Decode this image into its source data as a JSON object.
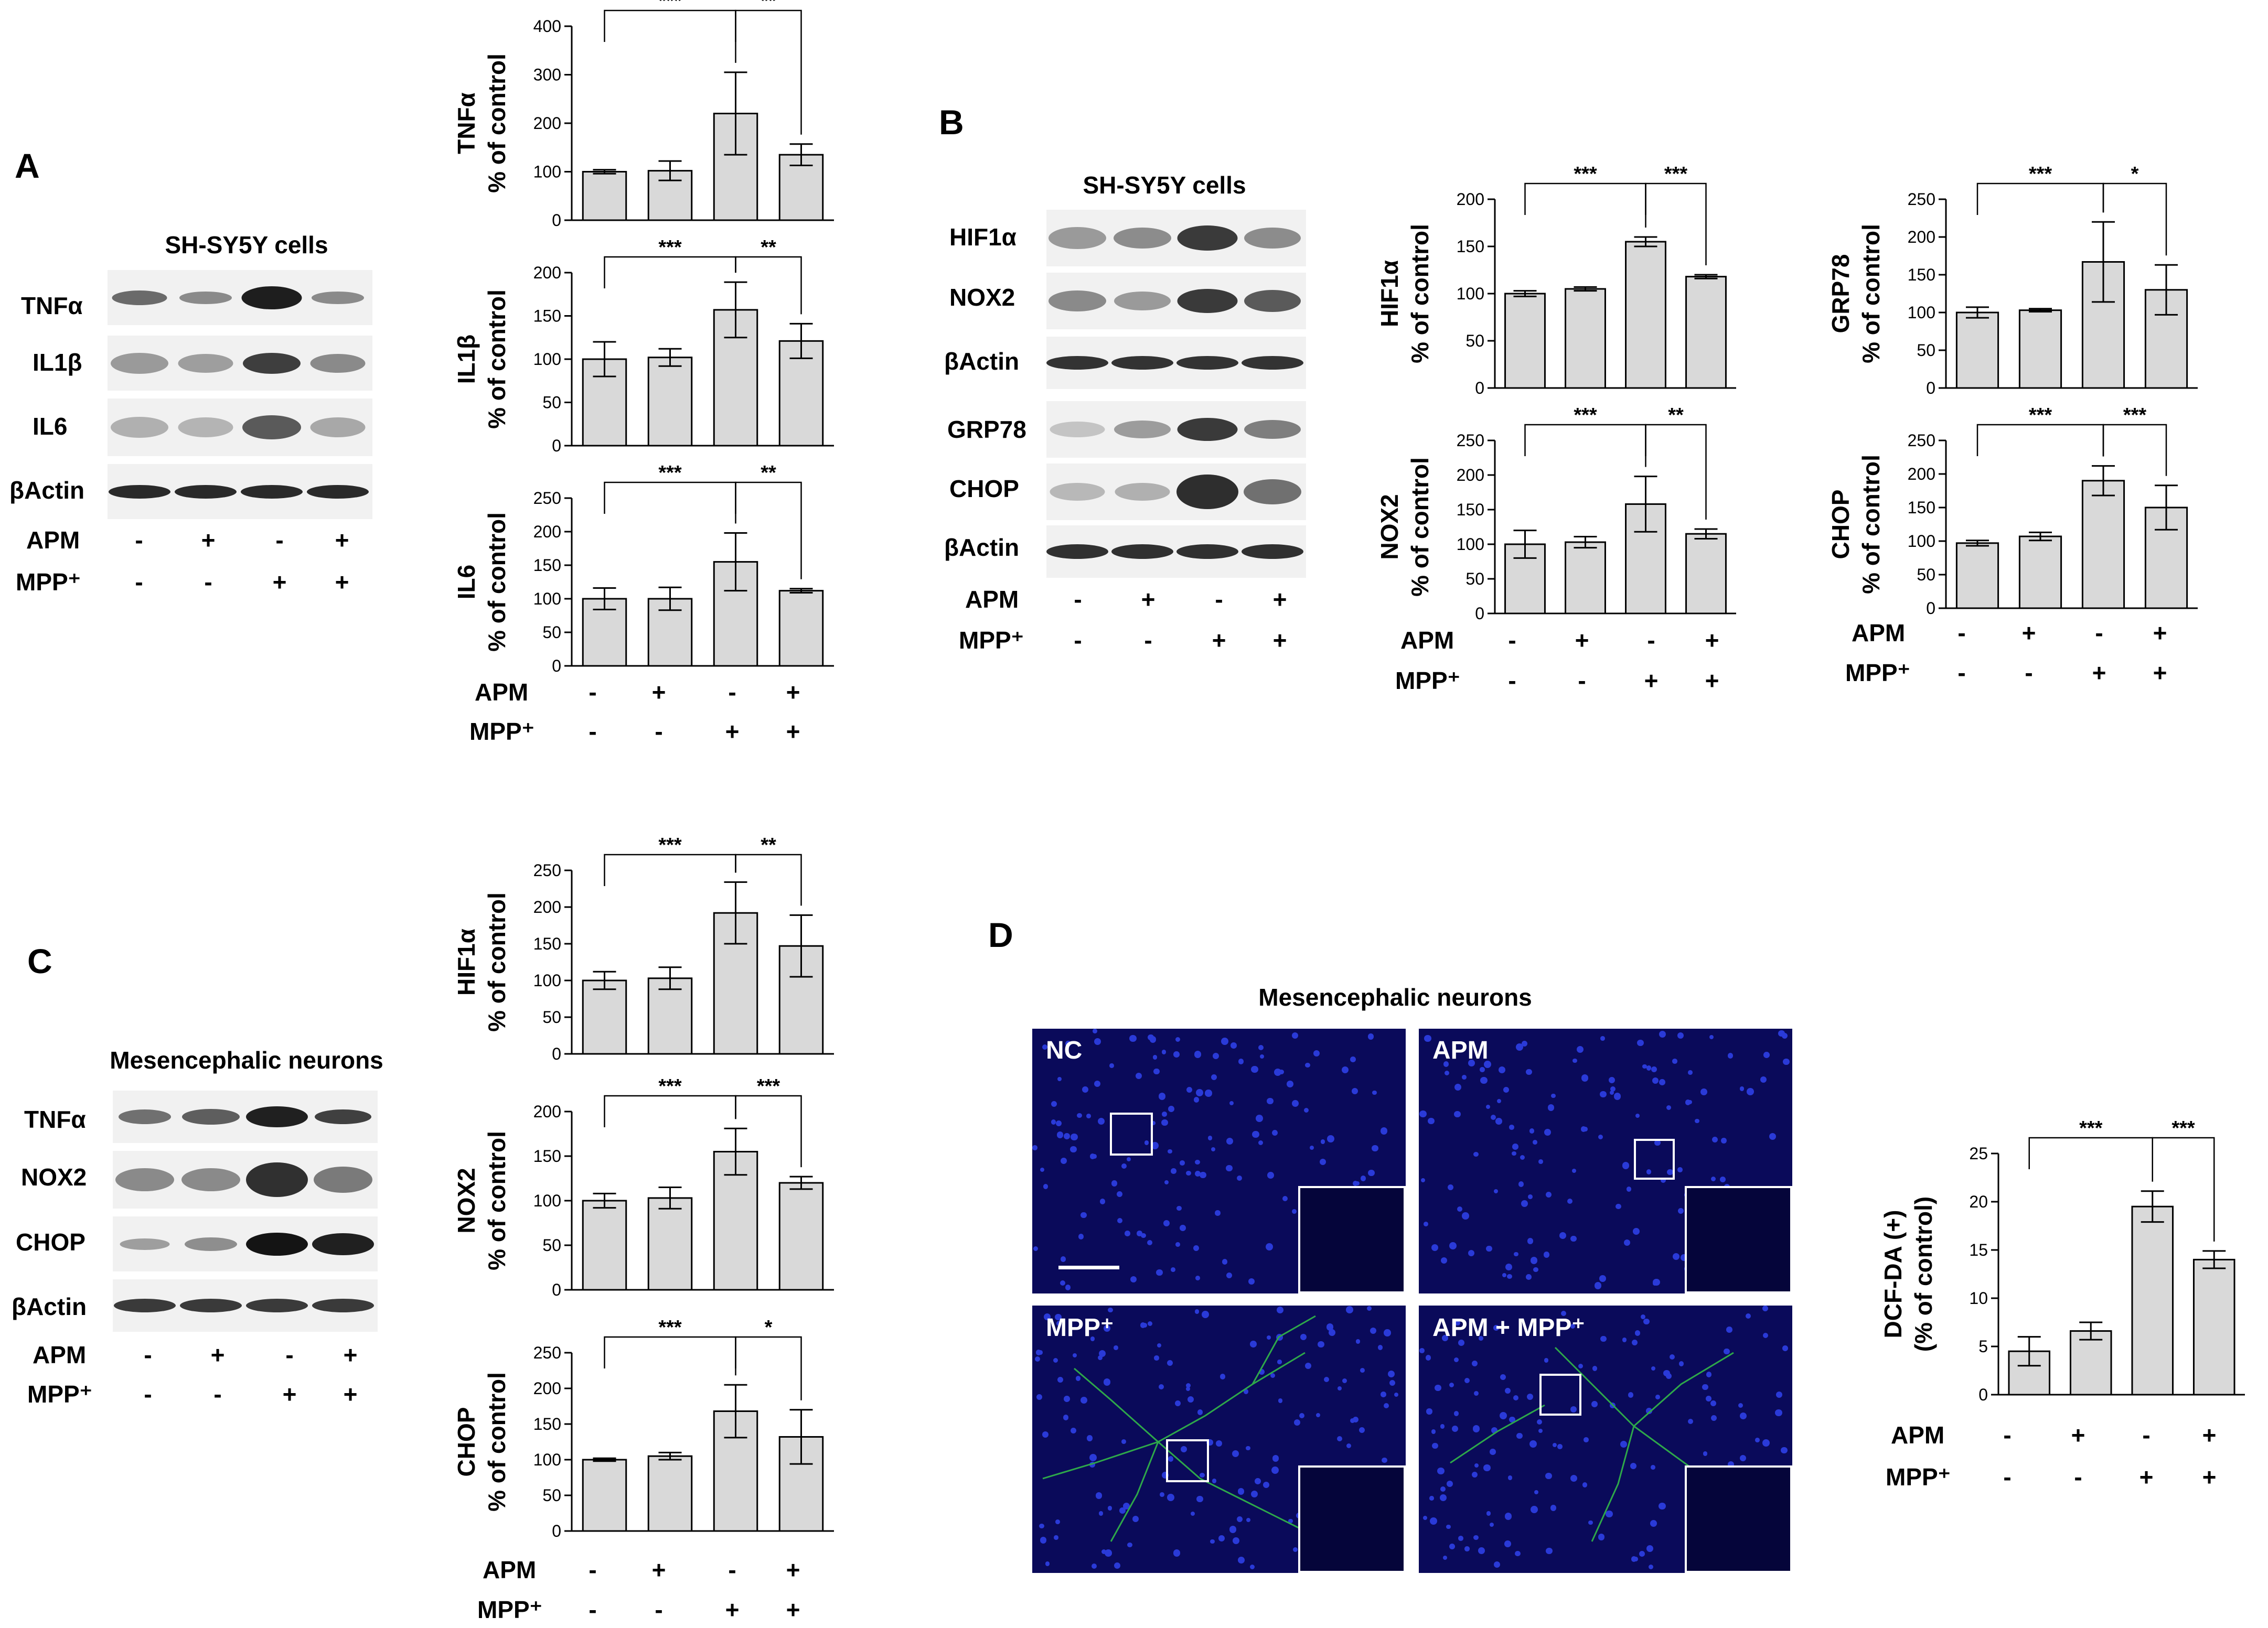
{
  "panels": {
    "A": "A",
    "B": "B",
    "C": "C",
    "D": "D"
  },
  "treatments": {
    "apm_label": "APM",
    "mpp_label": "MPP⁺",
    "apm": [
      "-",
      "+",
      "-",
      "+"
    ],
    "mpp": [
      "-",
      "-",
      "+",
      "+"
    ]
  },
  "blots": {
    "A": {
      "title": "SH-SY5Y cells",
      "rows": [
        "TNFα",
        "IL1β",
        "IL6",
        "βActin"
      ]
    },
    "B": {
      "title": "SH-SY5Y cells",
      "rows": [
        "HIF1α",
        "NOX2",
        "βActin",
        "GRP78",
        "CHOP",
        "βActin"
      ]
    },
    "C": {
      "title": "Mesencephalic neurons",
      "rows": [
        "TNFα",
        "NOX2",
        "CHOP",
        "βActin"
      ]
    }
  },
  "microscopy": {
    "title": "Mesencephalic neurons",
    "images": [
      {
        "label": "NC"
      },
      {
        "label": "APM"
      },
      {
        "label": "MPP⁺"
      },
      {
        "label": "APM + MPP⁺"
      }
    ]
  },
  "chart_data": [
    {
      "id": "A_TNFa",
      "type": "bar",
      "ylabel": [
        "TNFα",
        "% of control"
      ],
      "ylim": [
        0,
        400
      ],
      "yticks": [
        0,
        100,
        200,
        300,
        400
      ],
      "values": [
        100,
        102,
        220,
        135
      ],
      "errors": [
        4,
        20,
        85,
        22
      ],
      "sig": [
        {
          "from": 0,
          "to": 2,
          "label": "***"
        },
        {
          "from": 2,
          "to": 3,
          "label": "**"
        }
      ]
    },
    {
      "id": "A_IL1b",
      "type": "bar",
      "ylabel": [
        "IL1β",
        "% of control"
      ],
      "ylim": [
        0,
        200
      ],
      "yticks": [
        0,
        50,
        100,
        150,
        200
      ],
      "values": [
        100,
        102,
        157,
        121
      ],
      "errors": [
        20,
        10,
        32,
        20
      ],
      "sig": [
        {
          "from": 0,
          "to": 2,
          "label": "***"
        },
        {
          "from": 2,
          "to": 3,
          "label": "**"
        }
      ]
    },
    {
      "id": "A_IL6",
      "type": "bar",
      "ylabel": [
        "IL6",
        "% of control"
      ],
      "ylim": [
        0,
        250
      ],
      "yticks": [
        0,
        50,
        100,
        150,
        200,
        250
      ],
      "values": [
        100,
        100,
        155,
        112
      ],
      "errors": [
        16,
        17,
        43,
        3
      ],
      "sig": [
        {
          "from": 0,
          "to": 2,
          "label": "***"
        },
        {
          "from": 2,
          "to": 3,
          "label": "**"
        }
      ]
    },
    {
      "id": "B_HIF1a",
      "type": "bar",
      "ylabel": [
        "HIF1α",
        "% of control"
      ],
      "ylim": [
        0,
        200
      ],
      "yticks": [
        0,
        50,
        100,
        150,
        200
      ],
      "values": [
        100,
        105,
        155,
        118
      ],
      "errors": [
        3,
        2,
        5,
        2
      ],
      "sig": [
        {
          "from": 0,
          "to": 2,
          "label": "***"
        },
        {
          "from": 2,
          "to": 3,
          "label": "***"
        }
      ]
    },
    {
      "id": "B_NOX2",
      "type": "bar",
      "ylabel": [
        "NOX2",
        "% of control"
      ],
      "ylim": [
        0,
        250
      ],
      "yticks": [
        0,
        50,
        100,
        150,
        200,
        250
      ],
      "values": [
        100,
        103,
        158,
        115
      ],
      "errors": [
        20,
        8,
        40,
        7
      ],
      "sig": [
        {
          "from": 0,
          "to": 2,
          "label": "***"
        },
        {
          "from": 2,
          "to": 3,
          "label": "**"
        }
      ]
    },
    {
      "id": "B_GRP78",
      "type": "bar",
      "ylabel": [
        "GRP78",
        "% of control"
      ],
      "ylim": [
        0,
        250
      ],
      "yticks": [
        0,
        50,
        100,
        150,
        200,
        250
      ],
      "values": [
        100,
        103,
        167,
        130
      ],
      "errors": [
        7,
        2,
        53,
        33
      ],
      "sig": [
        {
          "from": 0,
          "to": 2,
          "label": "***"
        },
        {
          "from": 2,
          "to": 3,
          "label": "*"
        }
      ]
    },
    {
      "id": "B_CHOP",
      "type": "bar",
      "ylabel": [
        "CHOP",
        "% of control"
      ],
      "ylim": [
        0,
        250
      ],
      "yticks": [
        0,
        50,
        100,
        150,
        200,
        250
      ],
      "values": [
        97,
        107,
        190,
        150
      ],
      "errors": [
        4,
        6,
        22,
        33
      ],
      "sig": [
        {
          "from": 0,
          "to": 2,
          "label": "***"
        },
        {
          "from": 2,
          "to": 3,
          "label": "***"
        }
      ]
    },
    {
      "id": "C_HIF1a",
      "type": "bar",
      "ylabel": [
        "HIF1α",
        "% of control"
      ],
      "ylim": [
        0,
        250
      ],
      "yticks": [
        0,
        50,
        100,
        150,
        200,
        250
      ],
      "values": [
        100,
        103,
        192,
        147
      ],
      "errors": [
        12,
        15,
        42,
        42
      ],
      "sig": [
        {
          "from": 0,
          "to": 2,
          "label": "***"
        },
        {
          "from": 2,
          "to": 3,
          "label": "**"
        }
      ]
    },
    {
      "id": "C_NOX2",
      "type": "bar",
      "ylabel": [
        "NOX2",
        "% of control"
      ],
      "ylim": [
        0,
        200
      ],
      "yticks": [
        0,
        50,
        100,
        150,
        200
      ],
      "values": [
        100,
        103,
        155,
        120
      ],
      "errors": [
        8,
        12,
        26,
        7
      ],
      "sig": [
        {
          "from": 0,
          "to": 2,
          "label": "***"
        },
        {
          "from": 2,
          "to": 3,
          "label": "***"
        }
      ]
    },
    {
      "id": "C_CHOP",
      "type": "bar",
      "ylabel": [
        "CHOP",
        "% of control"
      ],
      "ylim": [
        0,
        250
      ],
      "yticks": [
        0,
        50,
        100,
        150,
        200,
        250
      ],
      "values": [
        100,
        105,
        168,
        132
      ],
      "errors": [
        2,
        5,
        37,
        38
      ],
      "sig": [
        {
          "from": 0,
          "to": 2,
          "label": "***"
        },
        {
          "from": 2,
          "to": 3,
          "label": "*"
        }
      ]
    },
    {
      "id": "D_DCF",
      "type": "bar",
      "ylabel": [
        "DCF-DA (+)",
        "(% of control)"
      ],
      "ylim": [
        0,
        25
      ],
      "yticks": [
        0,
        5,
        10,
        15,
        20,
        25
      ],
      "values": [
        4.5,
        6.6,
        19.5,
        14
      ],
      "errors": [
        1.5,
        0.9,
        1.6,
        0.9
      ],
      "sig": [
        {
          "from": 0,
          "to": 2,
          "label": "***"
        },
        {
          "from": 2,
          "to": 3,
          "label": "***"
        }
      ]
    }
  ]
}
